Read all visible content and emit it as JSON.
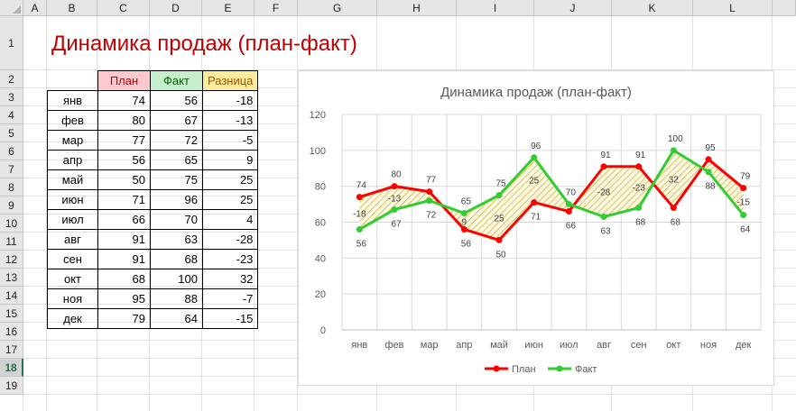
{
  "sheet": {
    "columns": [
      "A",
      "B",
      "C",
      "D",
      "E",
      "F",
      "G",
      "H",
      "I",
      "J",
      "K",
      "L"
    ],
    "rows": [
      "1",
      "2",
      "3",
      "4",
      "5",
      "6",
      "7",
      "8",
      "9",
      "10",
      "11",
      "12",
      "13",
      "14",
      "15",
      "16",
      "17",
      "18",
      "19"
    ],
    "selected_row": "18",
    "title": "Динамика продаж (план-факт)"
  },
  "table": {
    "headers": {
      "plan": "План",
      "fact": "Факт",
      "diff": "Разница"
    },
    "rows": [
      {
        "m": "янв",
        "plan": "74",
        "fact": "56",
        "diff": "-18"
      },
      {
        "m": "фев",
        "plan": "80",
        "fact": "67",
        "diff": "-13"
      },
      {
        "m": "мар",
        "plan": "77",
        "fact": "72",
        "diff": "-5"
      },
      {
        "m": "апр",
        "plan": "56",
        "fact": "65",
        "diff": "9"
      },
      {
        "m": "май",
        "plan": "50",
        "fact": "75",
        "diff": "25"
      },
      {
        "m": "июн",
        "plan": "71",
        "fact": "96",
        "diff": "25"
      },
      {
        "m": "июл",
        "plan": "66",
        "fact": "70",
        "diff": "4"
      },
      {
        "m": "авг",
        "plan": "91",
        "fact": "63",
        "diff": "-28"
      },
      {
        "m": "сен",
        "plan": "91",
        "fact": "68",
        "diff": "-23"
      },
      {
        "m": "окт",
        "plan": "68",
        "fact": "100",
        "diff": "32"
      },
      {
        "m": "ноя",
        "plan": "95",
        "fact": "88",
        "diff": "-7"
      },
      {
        "m": "дек",
        "plan": "79",
        "fact": "64",
        "diff": "-15"
      }
    ]
  },
  "chart_data": {
    "type": "line",
    "title": "Динамика продаж (план-факт)",
    "categories": [
      "янв",
      "фев",
      "мар",
      "апр",
      "май",
      "июн",
      "июл",
      "авг",
      "сен",
      "окт",
      "ноя",
      "дек"
    ],
    "ylim": [
      0,
      120
    ],
    "yticks": [
      0,
      20,
      40,
      60,
      80,
      100,
      120
    ],
    "grid": true,
    "legend": "bottom",
    "series": [
      {
        "name": "План",
        "color": "#ff0000",
        "values": [
          74,
          80,
          77,
          56,
          50,
          71,
          66,
          91,
          91,
          68,
          95,
          79
        ]
      },
      {
        "name": "Факт",
        "color": "#33cc33",
        "values": [
          56,
          67,
          72,
          65,
          75,
          96,
          70,
          63,
          68,
          100,
          88,
          64
        ]
      }
    ],
    "diff_labels": [
      "-18",
      "-13",
      "",
      "9",
      "25",
      "25",
      "",
      "-28",
      "-23",
      "32",
      "",
      "-15"
    ],
    "fill_color": "#c9b227"
  }
}
